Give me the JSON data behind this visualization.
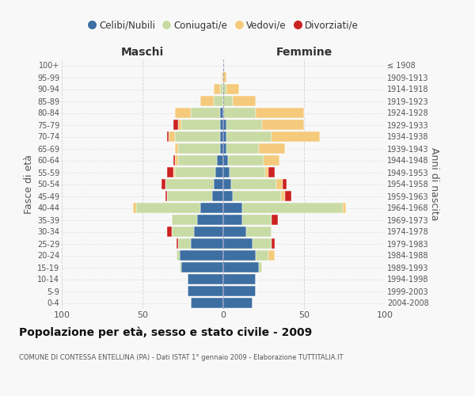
{
  "age_groups": [
    "0-4",
    "5-9",
    "10-14",
    "15-19",
    "20-24",
    "25-29",
    "30-34",
    "35-39",
    "40-44",
    "45-49",
    "50-54",
    "55-59",
    "60-64",
    "65-69",
    "70-74",
    "75-79",
    "80-84",
    "85-89",
    "90-94",
    "95-99",
    "100+"
  ],
  "birth_years": [
    "2004-2008",
    "1999-2003",
    "1994-1998",
    "1989-1993",
    "1984-1988",
    "1979-1983",
    "1974-1978",
    "1969-1973",
    "1964-1968",
    "1959-1963",
    "1954-1958",
    "1949-1953",
    "1944-1948",
    "1939-1943",
    "1934-1938",
    "1929-1933",
    "1924-1928",
    "1919-1923",
    "1914-1918",
    "1909-1913",
    "≤ 1908"
  ],
  "colors": {
    "celibi": "#3e6fa3",
    "coniugati": "#c8dba4",
    "vedovi": "#f5ca7d",
    "divorziati": "#cc2222"
  },
  "maschi": {
    "celibi": [
      20,
      22,
      22,
      26,
      27,
      20,
      18,
      16,
      14,
      7,
      6,
      5,
      4,
      2,
      2,
      2,
      2,
      0,
      0,
      0,
      0
    ],
    "coniugati": [
      0,
      0,
      0,
      1,
      2,
      8,
      14,
      16,
      40,
      28,
      30,
      25,
      24,
      26,
      28,
      24,
      18,
      6,
      2,
      0,
      0
    ],
    "vedovi": [
      0,
      0,
      0,
      0,
      0,
      0,
      0,
      0,
      2,
      0,
      0,
      1,
      2,
      2,
      4,
      2,
      10,
      8,
      4,
      1,
      0
    ],
    "divorziati": [
      0,
      0,
      0,
      0,
      0,
      1,
      3,
      0,
      0,
      1,
      2,
      4,
      1,
      0,
      1,
      3,
      0,
      0,
      0,
      0,
      0
    ]
  },
  "femmine": {
    "celibi": [
      18,
      20,
      20,
      22,
      20,
      18,
      14,
      12,
      12,
      6,
      5,
      4,
      3,
      2,
      2,
      2,
      0,
      0,
      0,
      0,
      0
    ],
    "coniugati": [
      0,
      0,
      0,
      2,
      8,
      12,
      16,
      18,
      62,
      30,
      28,
      22,
      22,
      20,
      28,
      22,
      20,
      6,
      2,
      0,
      0
    ],
    "vedovi": [
      0,
      0,
      0,
      0,
      4,
      0,
      0,
      0,
      2,
      2,
      4,
      2,
      10,
      16,
      30,
      26,
      30,
      14,
      8,
      2,
      0
    ],
    "divorziati": [
      0,
      0,
      0,
      0,
      0,
      2,
      0,
      4,
      0,
      4,
      2,
      4,
      0,
      0,
      0,
      0,
      0,
      0,
      0,
      0,
      0
    ]
  },
  "xlim": 100,
  "title": "Popolazione per età, sesso e stato civile - 2009",
  "subtitle": "COMUNE DI CONTESSA ENTELLINA (PA) - Dati ISTAT 1° gennaio 2009 - Elaborazione TUTTITALIA.IT",
  "ylabel_left": "Fasce di età",
  "ylabel_right": "Anni di nascita",
  "xlabel_maschi": "Maschi",
  "xlabel_femmine": "Femmine",
  "legend_labels": [
    "Celibi/Nubili",
    "Coniugati/e",
    "Vedovi/e",
    "Divorziati/e"
  ],
  "bg_color": "#f8f8f8",
  "grid_color": "#cccccc"
}
